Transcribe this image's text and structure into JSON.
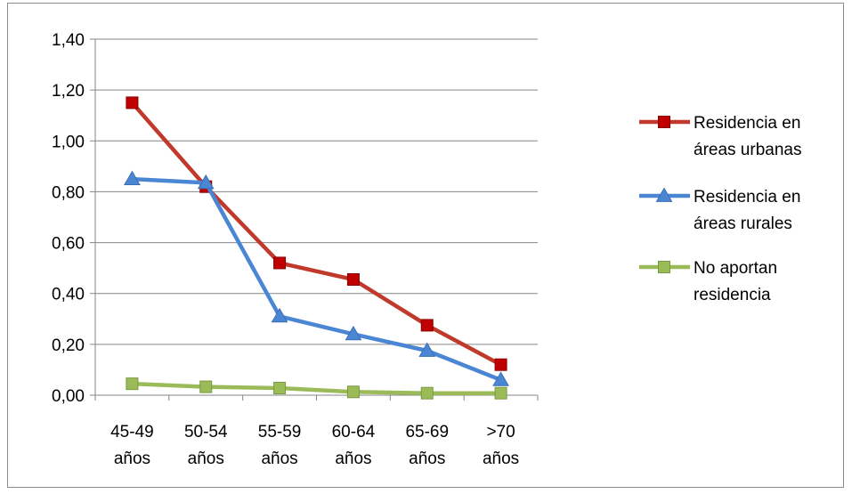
{
  "chart_data": {
    "type": "line",
    "title": "",
    "xlabel": "",
    "ylabel": "",
    "categories": [
      [
        "45-49",
        "años"
      ],
      [
        "50-54",
        "años"
      ],
      [
        "55-59",
        "años"
      ],
      [
        "60-64",
        "años"
      ],
      [
        "65-69",
        "años"
      ],
      [
        ">70",
        "años"
      ]
    ],
    "ylim": [
      0,
      1.4
    ],
    "yticks": [
      "0,00",
      "0,20",
      "0,40",
      "0,60",
      "0,80",
      "1,00",
      "1,20",
      "1,40"
    ],
    "grid": true,
    "legend_position": "right",
    "series": [
      {
        "name_lines": [
          "Residencia en",
          "áreas urbanas"
        ],
        "color": "#c0392b",
        "marker_color": "#c00000",
        "marker": "square",
        "values": [
          1.15,
          0.82,
          0.52,
          0.455,
          0.275,
          0.12
        ]
      },
      {
        "name_lines": [
          "Residencia en",
          "áreas rurales"
        ],
        "color": "#4a86d4",
        "marker_color": "#4a86d4",
        "marker": "triangle",
        "values": [
          0.85,
          0.835,
          0.31,
          0.24,
          0.175,
          0.06
        ]
      },
      {
        "name_lines": [
          "No aportan",
          "residencia"
        ],
        "color": "#9bbb59",
        "marker_color": "#9bbb59",
        "marker": "square",
        "values": [
          0.045,
          0.033,
          0.028,
          0.013,
          0.008,
          0.008
        ]
      }
    ]
  }
}
